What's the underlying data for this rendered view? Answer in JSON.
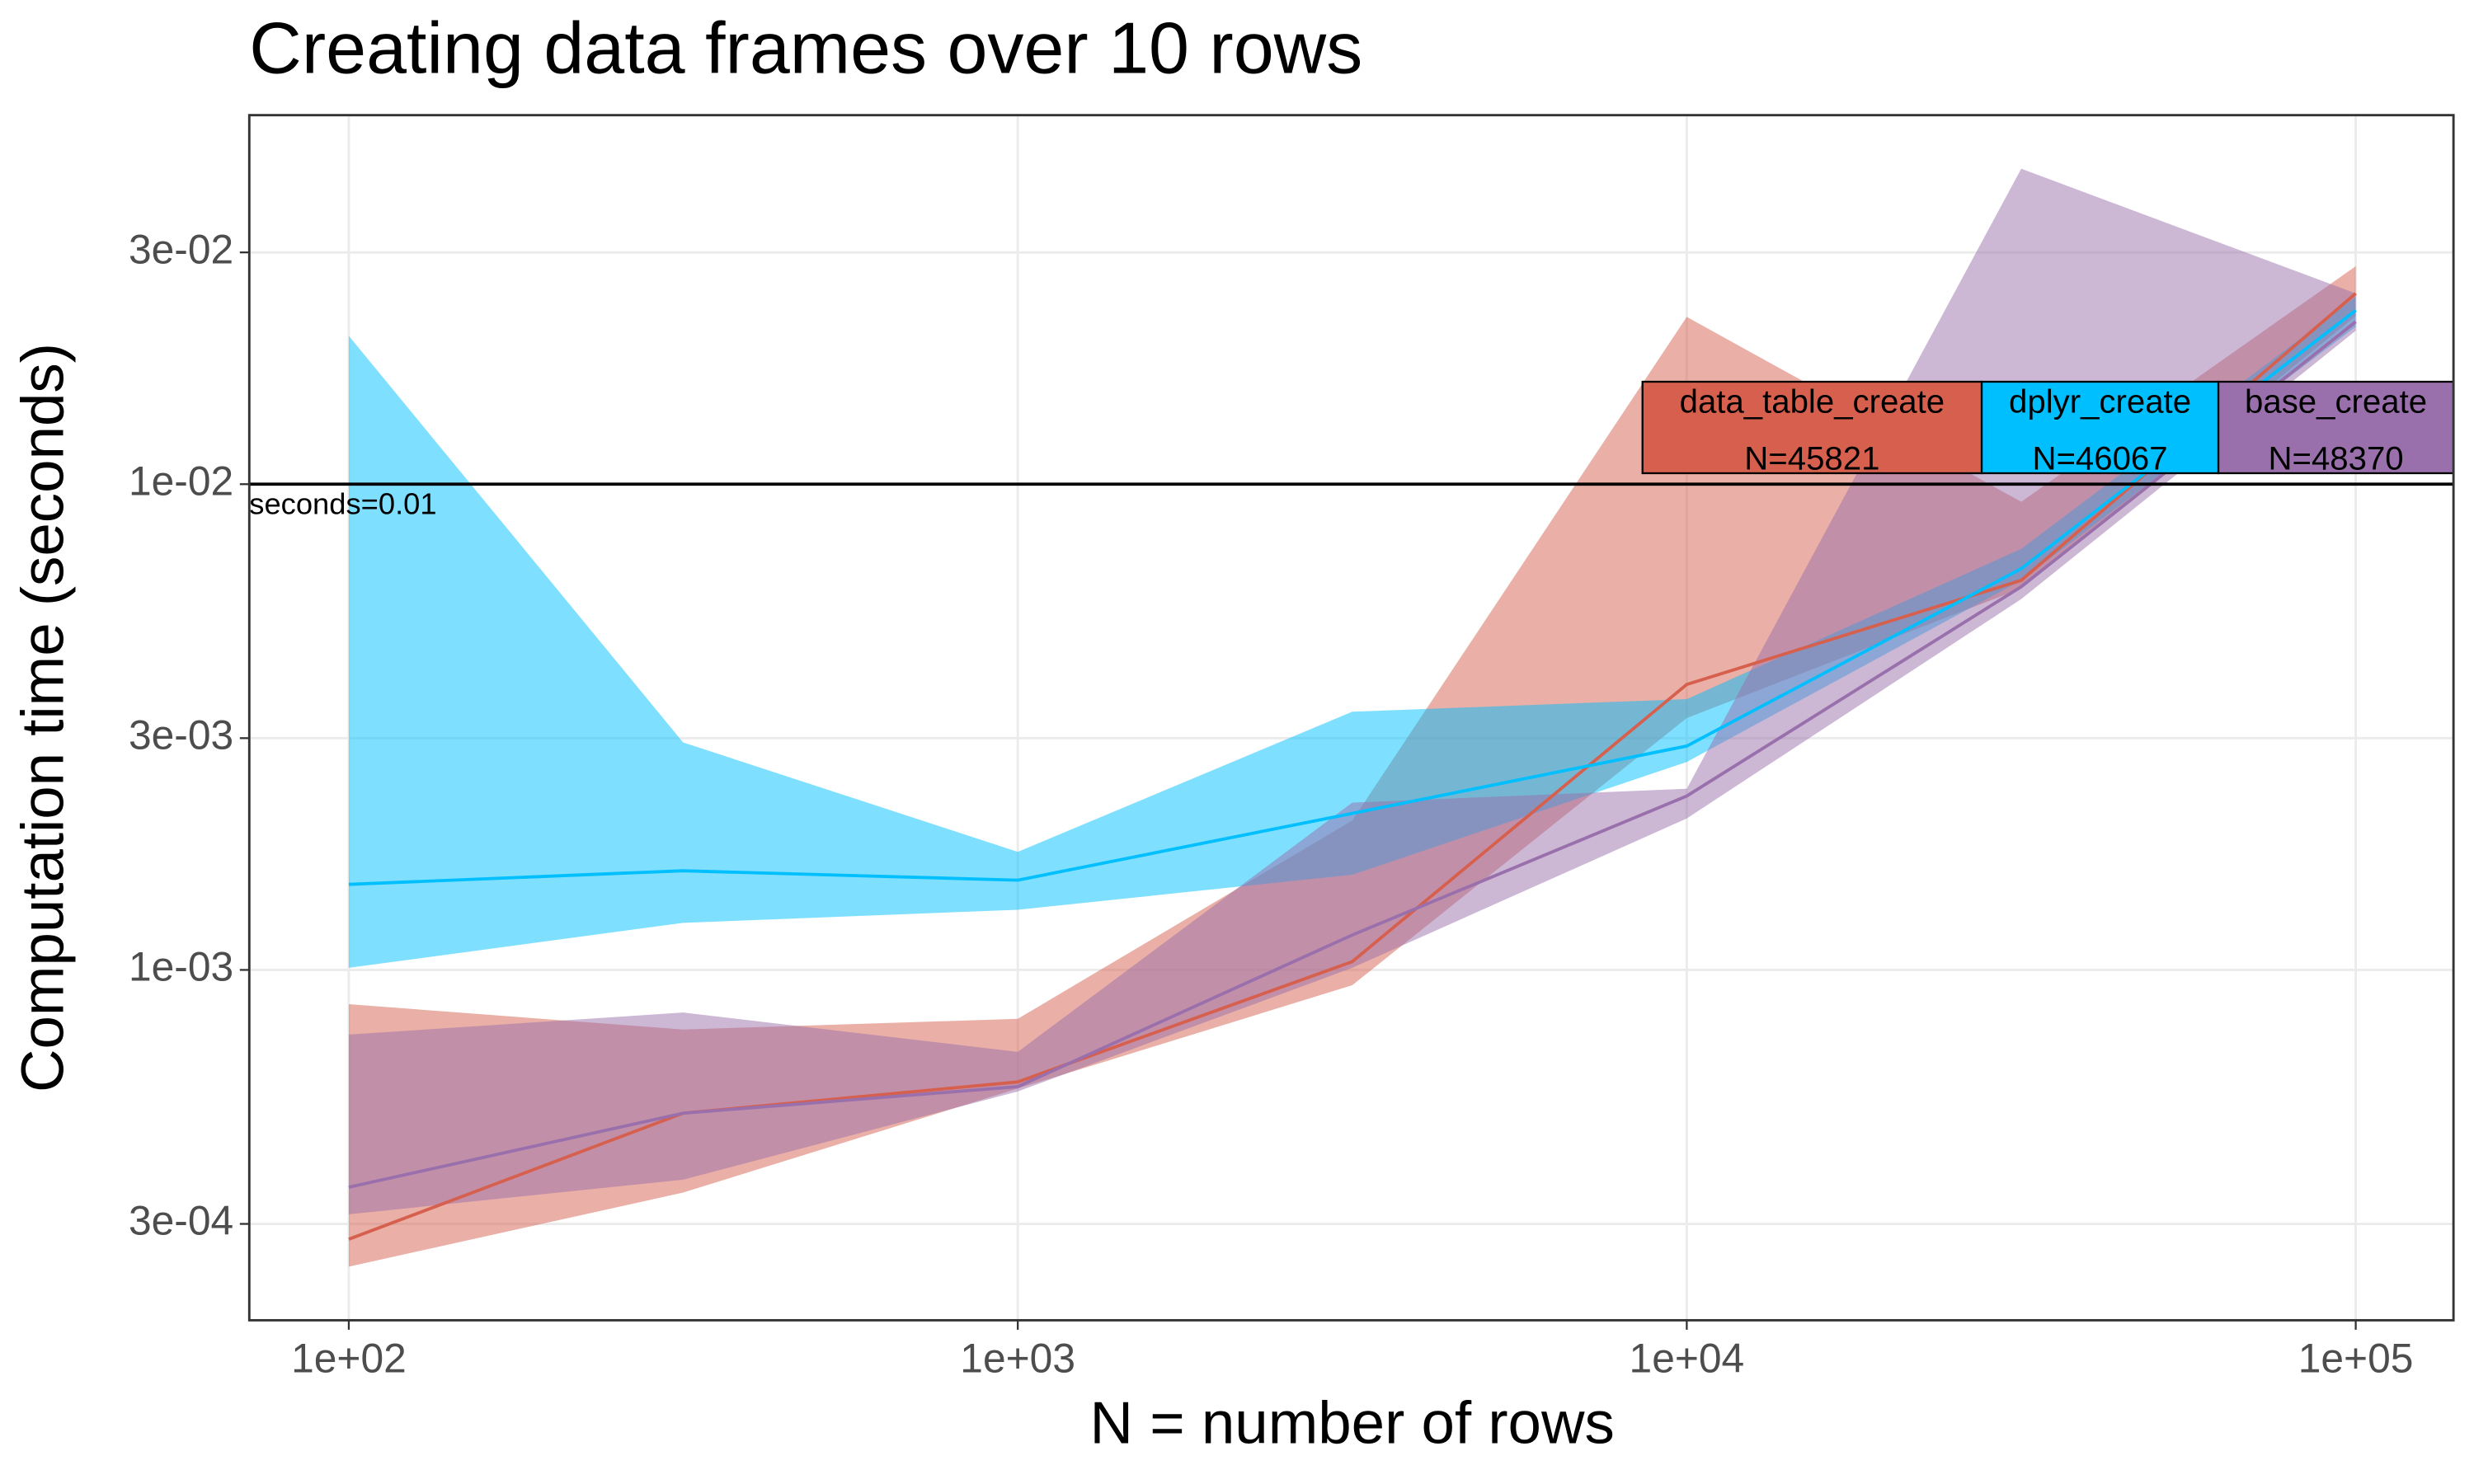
{
  "chart_data": {
    "type": "line",
    "title": "Creating data frames over 10 rows",
    "x_label": "N = number of rows",
    "y_label": "Computation time (seconds)",
    "log_x": true,
    "log_y": true,
    "grid": true,
    "x": [
      100,
      316,
      1000,
      3162,
      10000,
      31623,
      100000
    ],
    "xlim": [
      71,
      140000
    ],
    "xticks": [
      {
        "value": 100,
        "label": "1e+02"
      },
      {
        "value": 1000,
        "label": "1e+03"
      },
      {
        "value": 10000,
        "label": "1e+04"
      },
      {
        "value": 100000,
        "label": "1e+05"
      }
    ],
    "ylim": [
      0.00019,
      0.0575
    ],
    "yticks": [
      {
        "value": 0.0003,
        "label": "3e-04"
      },
      {
        "value": 0.001,
        "label": "1e-03"
      },
      {
        "value": 0.003,
        "label": "3e-03"
      },
      {
        "value": 0.01,
        "label": "1e-02"
      },
      {
        "value": 0.03,
        "label": "3e-02"
      }
    ],
    "hline": {
      "value": 0.01,
      "label": "seconds=0.01"
    },
    "series": [
      {
        "name": "data_table_create",
        "n_label": "N=45821",
        "color": "#d6604d",
        "values": [
          0.000279,
          0.000507,
          0.000588,
          0.00104,
          0.00387,
          0.00634,
          0.0247
        ],
        "lower": [
          0.000245,
          0.000348,
          0.00057,
          0.00093,
          0.0033,
          0.0061,
          0.0222
        ],
        "upper": [
          0.00085,
          0.000754,
          0.000793,
          0.00203,
          0.0221,
          0.0092,
          0.0281
        ]
      },
      {
        "name": "dplyr_create",
        "n_label": "N=46067",
        "color": "#00bfff",
        "values": [
          0.0015,
          0.0016,
          0.00153,
          0.0021,
          0.00289,
          0.0067,
          0.0228
        ],
        "lower": [
          0.00101,
          0.00125,
          0.00133,
          0.00157,
          0.00268,
          0.00634,
          0.0211
        ],
        "upper": [
          0.0202,
          0.00294,
          0.00175,
          0.0034,
          0.00361,
          0.00736,
          0.0243
        ]
      },
      {
        "name": "base_create",
        "n_label": "N=48370",
        "color": "#9970ab",
        "values": [
          0.000357,
          0.000507,
          0.000575,
          0.00118,
          0.00228,
          0.00615,
          0.0216
        ],
        "lower": [
          0.000314,
          0.00037,
          0.000562,
          0.00101,
          0.00205,
          0.0058,
          0.0207
        ],
        "upper": [
          0.000736,
          0.000817,
          0.000678,
          0.00221,
          0.00236,
          0.0446,
          0.0247
        ]
      }
    ]
  }
}
